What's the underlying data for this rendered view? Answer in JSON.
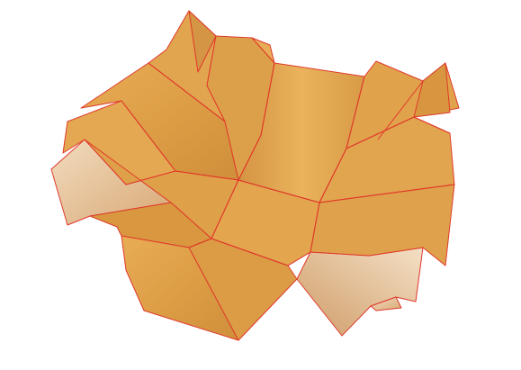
{
  "scene": {
    "subject": "folded-paper-surface",
    "colors": {
      "background": "#ffffff",
      "face_light": "#e6a94e",
      "face_mid": "#d9983f",
      "face_shadow": "#c98a3a",
      "face_inner": "#e9c8a3",
      "face_inner_light": "#f0d7b8",
      "crease_line": "#e0392b"
    }
  }
}
